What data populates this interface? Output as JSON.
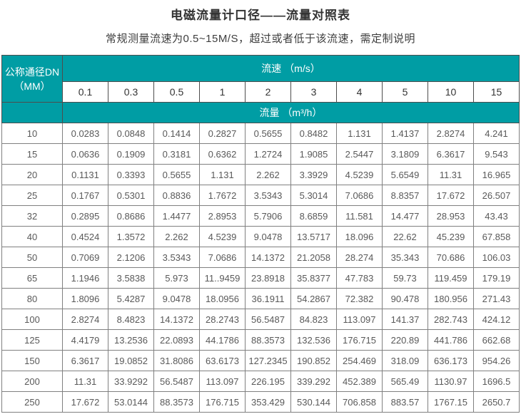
{
  "page": {
    "title": "电磁流量计口径——流量对照表",
    "subtitle": "常规测量流速为0.5~15M/S，超过或者低于该流速，需定制说明"
  },
  "colors": {
    "header_teal": "#009DA4",
    "dark_border": "#4d4d4d",
    "grid_border": "#808080",
    "data_text": "#595959"
  },
  "table": {
    "corner_header_line1": "公称通径DN",
    "corner_header_line2": "（MM）",
    "velocity_header": "流速 （m/s）",
    "flow_header": "流量 （m³/h）",
    "velocities": [
      "0.1",
      "0.3",
      "0.5",
      "1",
      "2",
      "3",
      "4",
      "5",
      "10",
      "15"
    ],
    "rows": [
      {
        "dn": "10",
        "values": [
          "0.0283",
          "0.0848",
          "0.1414",
          "0.2827",
          "0.5655",
          "0.8482",
          "1.131",
          "1.4137",
          "2.8274",
          "4.241"
        ]
      },
      {
        "dn": "15",
        "values": [
          "0.0636",
          "0.1909",
          "0.3181",
          "0.6362",
          "1.2724",
          "1.9085",
          "2.5447",
          "3.1809",
          "6.3617",
          "9.543"
        ]
      },
      {
        "dn": "20",
        "values": [
          "0.1131",
          "0.3393",
          "0.5655",
          "1.131",
          "2.262",
          "3.3929",
          "4.5239",
          "5.6549",
          "11.31",
          "16.965"
        ]
      },
      {
        "dn": "25",
        "values": [
          "0.1767",
          "0.5301",
          "0.8836",
          "1.7672",
          "3.5343",
          "5.3014",
          "7.0686",
          "8.8357",
          "17.672",
          "26.507"
        ]
      },
      {
        "dn": "32",
        "values": [
          "0.2895",
          "0.8686",
          "1.4477",
          "2.8953",
          "5.7906",
          "8.6859",
          "11.581",
          "14.477",
          "28.953",
          "43.43"
        ]
      },
      {
        "dn": "40",
        "values": [
          "0.4524",
          "1.3572",
          "2.262",
          "4.5239",
          "9.0478",
          "13.5717",
          "18.096",
          "22.62",
          "45.239",
          "67.858"
        ]
      },
      {
        "dn": "50",
        "values": [
          "0.7069",
          "2.1206",
          "3.5343",
          "7.0686",
          "14.1372",
          "21.2058",
          "28.274",
          "35.343",
          "70.686",
          "106.03"
        ]
      },
      {
        "dn": "65",
        "values": [
          "1.1946",
          "3.5838",
          "5.973",
          "11..9459",
          "23.8918",
          "35.8377",
          "47.783",
          "59.73",
          "119.459",
          "179.19"
        ]
      },
      {
        "dn": "80",
        "values": [
          "1.8096",
          "5.4287",
          "9.0478",
          "18.0956",
          "36.1911",
          "54.2867",
          "72.382",
          "90.478",
          "180.956",
          "271.43"
        ]
      },
      {
        "dn": "100",
        "values": [
          "2.8274",
          "8.4823",
          "14.1372",
          "28.2743",
          "56.5487",
          "84.823",
          "113.097",
          "141.37",
          "282.743",
          "424.12"
        ]
      },
      {
        "dn": "125",
        "values": [
          "4.4179",
          "13.2536",
          "22.0893",
          "44.1786",
          "88.3573",
          "132.536",
          "176.715",
          "220.89",
          "441.786",
          "662.68"
        ]
      },
      {
        "dn": "150",
        "values": [
          "6.3617",
          "19.0852",
          "31.8086",
          "63.6173",
          "127.2345",
          "190.852",
          "254.469",
          "318.09",
          "636.173",
          "954.26"
        ]
      },
      {
        "dn": "200",
        "values": [
          "11.31",
          "33.9292",
          "56.5487",
          "113.097",
          "226.195",
          "339.292",
          "452.389",
          "565.49",
          "1130.97",
          "1696.5"
        ]
      },
      {
        "dn": "250",
        "values": [
          "17.672",
          "53.0144",
          "88.3573",
          "176.715",
          "353.429",
          "530.144",
          "706.858",
          "883.57",
          "1767.15",
          "2650.7"
        ]
      }
    ]
  }
}
